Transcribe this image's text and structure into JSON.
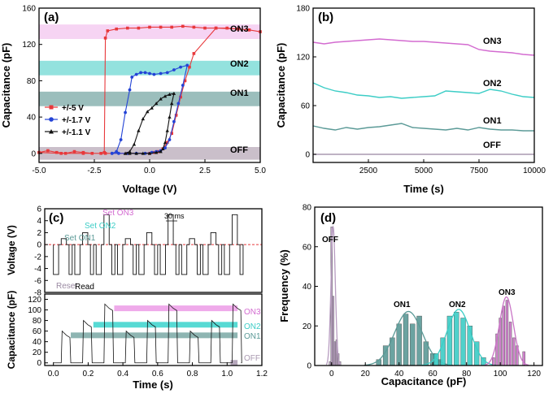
{
  "chart_data": [
    {
      "panel": "(a)",
      "type": "line",
      "xlabel": "Voltage (V)",
      "ylabel": "Capacitance (pF)",
      "xlim": [
        -5,
        5
      ],
      "ylim": [
        -10,
        160
      ],
      "xticks": [
        -5,
        -2.5,
        0,
        2.5,
        5
      ],
      "xtick_labels": [
        "-5.0",
        "-2.5",
        "0.0",
        "2.5",
        "5.0"
      ],
      "yticks": [
        0,
        40,
        80,
        120,
        160
      ],
      "legend_position": "lower-left",
      "bands": [
        {
          "label": "OFF",
          "y0": -7,
          "y1": 7,
          "color": "#b8a9b8"
        },
        {
          "label": "ON1",
          "y0": 52,
          "y1": 68,
          "color": "#7aa8a5"
        },
        {
          "label": "ON2",
          "y0": 86,
          "y1": 102,
          "color": "#6fd8d3"
        },
        {
          "label": "ON3",
          "y0": 126,
          "y1": 142,
          "color": "#f3c6ef"
        }
      ],
      "series": [
        {
          "name": "+/-5 V",
          "color": "#e8383b",
          "marker": "square",
          "x": [
            -5,
            -4.6,
            -4.2,
            -3.8,
            -3.4,
            -3,
            -2.6,
            -2.2,
            -2.05,
            -2.0,
            -1.9,
            -1.5,
            -1,
            -0.5,
            0,
            0.5,
            1,
            1.5,
            2,
            2.5,
            3,
            3.5,
            4,
            4.5,
            5,
            4.5,
            4,
            3,
            2,
            1.8,
            1.6,
            1.4,
            1.2,
            1.0,
            0.8,
            0.6,
            0.4,
            0.2,
            0,
            -1,
            -2,
            -3,
            -4,
            -5
          ],
          "y": [
            1,
            3,
            1,
            0,
            2,
            1,
            0,
            0,
            1,
            127,
            135,
            137,
            138,
            138,
            139,
            139,
            139,
            140,
            139,
            138,
            138,
            138,
            137,
            136,
            134,
            136,
            137,
            138,
            110,
            95,
            80,
            62,
            42,
            22,
            12,
            5,
            2,
            1,
            0,
            0,
            0,
            0,
            0,
            1
          ]
        },
        {
          "name": "+/-1.7 V",
          "color": "#2343d6",
          "marker": "circle",
          "x": [
            -1.7,
            -1.5,
            -1.3,
            -1.1,
            -0.9,
            -0.8,
            -0.6,
            -0.4,
            -0.2,
            0,
            0.2,
            0.5,
            0.8,
            1.1,
            1.4,
            1.7,
            1.5,
            1.3,
            1.1,
            0.9,
            0.7,
            0.5,
            0.3,
            0.1,
            -0.2,
            -0.6,
            -1,
            -1.4,
            -1.7
          ],
          "y": [
            0,
            2,
            15,
            45,
            70,
            84,
            87,
            89,
            89,
            88,
            87,
            88,
            89,
            92,
            95,
            97,
            75,
            55,
            35,
            15,
            6,
            3,
            2,
            1,
            0,
            0,
            0,
            0,
            0
          ]
        },
        {
          "name": "+/-1.1 V",
          "color": "#111111",
          "marker": "triangle",
          "x": [
            -1.1,
            -0.9,
            -0.7,
            -0.5,
            -0.3,
            -0.1,
            0.1,
            0.3,
            0.5,
            0.7,
            0.9,
            1.1,
            1.0,
            0.9,
            0.8,
            0.7,
            0.6,
            0.5,
            0.3,
            0,
            -0.3,
            -0.6,
            -0.9,
            -1.1
          ],
          "y": [
            0,
            2,
            10,
            25,
            38,
            46,
            50,
            55,
            60,
            63,
            65,
            66,
            55,
            40,
            25,
            12,
            5,
            2,
            1,
            0,
            0,
            0,
            0,
            0
          ]
        }
      ]
    },
    {
      "panel": "(b)",
      "type": "line",
      "xlabel": "Time (s)",
      "ylabel": "Capacitance (pF)",
      "xlim": [
        0,
        10000
      ],
      "ylim": [
        -10,
        180
      ],
      "xticks": [
        2500,
        5000,
        7500,
        10000
      ],
      "yticks": [
        0,
        60,
        120,
        180
      ],
      "series": [
        {
          "name": "ON3",
          "color": "#d36bd0",
          "x": [
            0,
            500,
            1000,
            1500,
            2000,
            2500,
            3000,
            3500,
            4000,
            4500,
            5000,
            5500,
            6000,
            6500,
            7000,
            7500,
            8000,
            8500,
            9000,
            9500,
            10000
          ],
          "y": [
            138,
            136,
            138,
            139,
            140,
            141,
            142,
            141,
            140,
            139,
            139,
            138,
            137,
            136,
            135,
            129,
            127,
            126,
            125,
            123,
            122
          ]
        },
        {
          "name": "ON2",
          "color": "#3ccdc6",
          "x": [
            0,
            500,
            1000,
            1500,
            2000,
            2500,
            3000,
            3500,
            4000,
            4500,
            5000,
            5500,
            6000,
            6500,
            7000,
            7500,
            8000,
            8500,
            9000,
            9500,
            10000
          ],
          "y": [
            88,
            82,
            78,
            76,
            73,
            72,
            70,
            71,
            69,
            70,
            71,
            72,
            78,
            77,
            76,
            75,
            80,
            78,
            74,
            71,
            70
          ]
        },
        {
          "name": "ON1",
          "color": "#5b9a97",
          "x": [
            0,
            500,
            1000,
            1500,
            2000,
            2500,
            3000,
            3500,
            4000,
            4500,
            5000,
            5500,
            6000,
            6500,
            7000,
            7500,
            8000,
            8500,
            9000,
            9500,
            10000
          ],
          "y": [
            35,
            32,
            30,
            33,
            31,
            33,
            34,
            36,
            38,
            33,
            32,
            31,
            30,
            32,
            30,
            33,
            31,
            30,
            30,
            29,
            29
          ]
        },
        {
          "name": "OFF",
          "color": "#a999b0",
          "x": [
            0,
            10000
          ],
          "y": [
            0,
            0
          ]
        }
      ]
    },
    {
      "panel": "(c)",
      "type": "line",
      "subplots": [
        {
          "ylabel": "Voltage (V)",
          "ylim": [
            -8,
            6
          ],
          "yticks": [
            -8,
            -6,
            -4,
            -2,
            0,
            2,
            4,
            6
          ],
          "annotations": [
            "Set ON3",
            "Set ON2",
            "Set ON1",
            "30 ms",
            "Reset",
            "Read"
          ],
          "series": [
            {
              "name": "voltage pulses",
              "color": "#111111",
              "description": "periodic set pulses to +1, +2, +5 V, reset pulses to -5 V, read at 0 V"
            }
          ]
        },
        {
          "xlabel": "Time (s)",
          "ylabel": "Capacitance (pF)",
          "xlim": [
            -0.05,
            1.2
          ],
          "ylim": [
            -5,
            130
          ],
          "xticks": [
            0.0,
            0.2,
            0.4,
            0.6,
            0.8,
            1.0,
            1.2
          ],
          "xtick_labels": [
            "0.0",
            "0.2",
            "0.4",
            "0.6",
            "0.8",
            "1.0",
            "1.2"
          ],
          "yticks": [
            0,
            20,
            40,
            60,
            80,
            100,
            120
          ],
          "bands": [
            {
              "label": "OFF",
              "y": 0,
              "x0": 1.02,
              "color": "#a999b0"
            },
            {
              "label": "ON1",
              "y": 52,
              "x0": 0.1,
              "color": "#7aa8a5"
            },
            {
              "label": "ON2",
              "y": 72,
              "x0": 0.23,
              "color": "#39d3cc"
            },
            {
              "label": "ON3",
              "y": 103,
              "x0": 0.35,
              "color": "#ec9be6"
            }
          ]
        }
      ]
    },
    {
      "panel": "(d)",
      "type": "bar",
      "xlabel": "Capacitance (pF)",
      "ylabel": "Frequency (%)",
      "xlim": [
        -10,
        125
      ],
      "ylim": [
        0,
        80
      ],
      "xticks": [
        0,
        20,
        40,
        60,
        80,
        100,
        120
      ],
      "yticks": [
        0,
        20,
        40,
        60,
        80
      ],
      "groups": [
        {
          "label": "OFF",
          "color": "#b79cc0",
          "x": [
            -1,
            0,
            1,
            2,
            3,
            4,
            5
          ],
          "values": [
            2,
            70,
            35,
            12,
            13,
            6,
            2
          ]
        },
        {
          "label": "ON1",
          "color": "#5b9a97",
          "x": [
            28,
            32,
            36,
            40,
            44,
            48,
            52,
            56,
            60,
            64
          ],
          "values": [
            3,
            10,
            14,
            21,
            26,
            21,
            25,
            12,
            6,
            3
          ]
        },
        {
          "label": "ON2",
          "color": "#3ccdc6",
          "x": [
            62,
            66,
            70,
            74,
            78,
            82,
            86,
            90
          ],
          "values": [
            6,
            14,
            25,
            27,
            24,
            20,
            12,
            4
          ]
        },
        {
          "label": "ON3",
          "color": "#c975c6",
          "x": [
            96,
            98,
            100,
            102,
            104,
            106,
            108,
            110,
            114
          ],
          "values": [
            4,
            16,
            24,
            30,
            33,
            22,
            14,
            10,
            7
          ]
        }
      ]
    }
  ],
  "labels": {
    "a": {
      "panel": "(a)",
      "xlabel": "Voltage (V)",
      "ylabel": "Capacitance (pF)",
      "xt": [
        "-5.0",
        "-2.5",
        "0.0",
        "2.5",
        "5.0"
      ],
      "yt": [
        "0",
        "40",
        "80",
        "120",
        "160"
      ],
      "on3": "ON3",
      "on2": "ON2",
      "on1": "ON1",
      "off": "OFF",
      "l1": "+/-5 V",
      "l2": "+/-1.7 V",
      "l3": "+/-1.1 V"
    },
    "b": {
      "panel": "(b)",
      "xlabel": "Time (s)",
      "ylabel": "Capacitance (pF)",
      "xt": [
        "2500",
        "5000",
        "7500",
        "10000"
      ],
      "yt": [
        "0",
        "60",
        "120",
        "180"
      ],
      "on3": "ON3",
      "on2": "ON2",
      "on1": "ON1",
      "off": "OFF"
    },
    "c": {
      "panel": "(c)",
      "ylabel1": "Voltage (V)",
      "ylabel2": "Capacitance (pF)",
      "xlabel": "Time (s)",
      "yt1": [
        "6",
        "4",
        "2",
        "0",
        "-2",
        "-4",
        "-6",
        "-8"
      ],
      "yt2": [
        "120",
        "100",
        "80",
        "60",
        "40",
        "20",
        "0"
      ],
      "xt": [
        "0.0",
        "0.2",
        "0.4",
        "0.6",
        "0.8",
        "1.0",
        "1.2"
      ],
      "set3": "Set ON3",
      "set2": "Set ON2",
      "set1": "Set ON1",
      "ms": "30 ms",
      "reset": "Reset",
      "read": "Read",
      "on3": "ON3",
      "on2": "ON2",
      "on1": "ON1",
      "off": "OFF"
    },
    "d": {
      "panel": "(d)",
      "xlabel": "Capacitance (pF)",
      "ylabel": "Frequency (%)",
      "xt": [
        "0",
        "20",
        "40",
        "60",
        "80",
        "100",
        "120"
      ],
      "yt": [
        "0",
        "20",
        "40",
        "60",
        "80"
      ],
      "off": "OFF",
      "on1": "ON1",
      "on2": "ON2",
      "on3": "ON3"
    }
  }
}
